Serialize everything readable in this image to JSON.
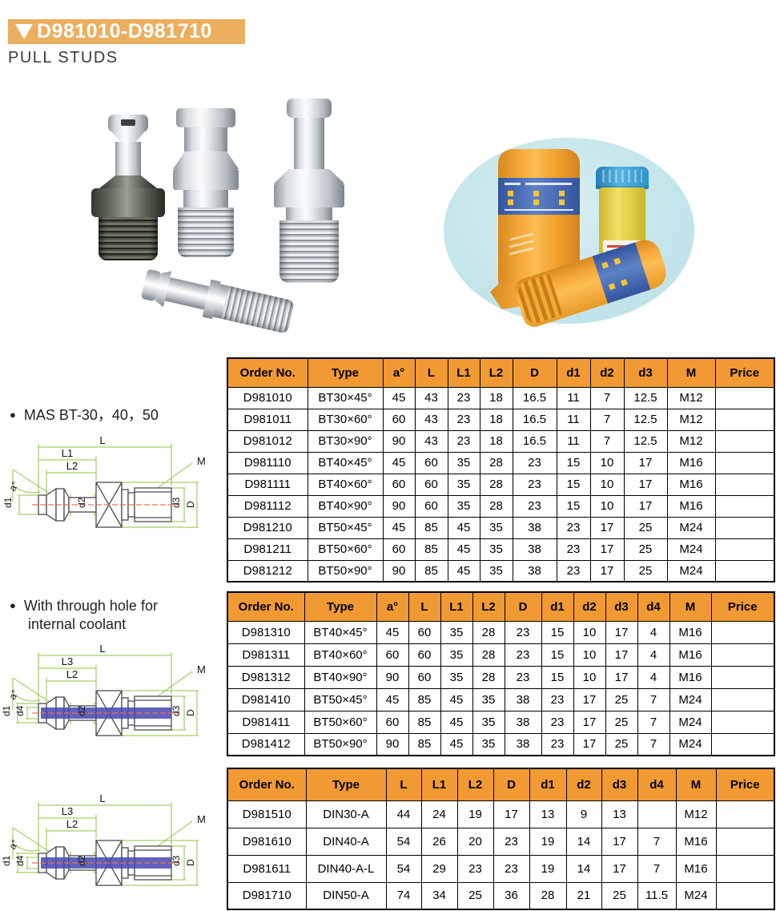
{
  "header": {
    "banner": "D981010-D981710",
    "title": "PULL STUDS"
  },
  "sections": {
    "mas": "MAS BT-30，40，50",
    "coolant_line1": "With through hole for",
    "coolant_line2": "internal coolant"
  },
  "diagrams": {
    "d1": {
      "L": "L",
      "L1": "L1",
      "L2": "L2",
      "M": "M",
      "a": "a°",
      "d1": "d1",
      "d2": "d2",
      "d3": "d3",
      "D": "D"
    },
    "d2": {
      "L": "L",
      "L3": "L3",
      "L2": "L2",
      "M": "M",
      "a": "a°",
      "d1": "d1",
      "d4": "d4",
      "d2": "d2",
      "d3": "d3",
      "D": "D"
    },
    "d3": {
      "L": "L",
      "L3": "L3",
      "L2": "L2",
      "M": "M",
      "a": "a°",
      "d1": "d1",
      "d4": "d4",
      "d2": "d2",
      "d3": "d3",
      "D": "D"
    }
  },
  "tables": [
    {
      "headers": [
        "Order No.",
        "Type",
        "a°",
        "L",
        "L1",
        "L2",
        "D",
        "d1",
        "d2",
        "d3",
        "M",
        "Price"
      ],
      "rows": [
        [
          "D981010",
          "BT30×45°",
          "45",
          "43",
          "23",
          "18",
          "16.5",
          "11",
          "7",
          "12.5",
          "M12",
          ""
        ],
        [
          "D981011",
          "BT30×60°",
          "60",
          "43",
          "23",
          "18",
          "16.5",
          "11",
          "7",
          "12.5",
          "M12",
          ""
        ],
        [
          "D981012",
          "BT30×90°",
          "90",
          "43",
          "23",
          "18",
          "16.5",
          "11",
          "7",
          "12.5",
          "M12",
          ""
        ],
        [
          "D981110",
          "BT40×45°",
          "45",
          "60",
          "35",
          "28",
          "23",
          "15",
          "10",
          "17",
          "M16",
          ""
        ],
        [
          "D981111",
          "BT40×60°",
          "60",
          "60",
          "35",
          "28",
          "23",
          "15",
          "10",
          "17",
          "M16",
          ""
        ],
        [
          "D981112",
          "BT40×90°",
          "90",
          "60",
          "35",
          "28",
          "23",
          "15",
          "10",
          "17",
          "M16",
          ""
        ],
        [
          "D981210",
          "BT50×45°",
          "45",
          "85",
          "45",
          "35",
          "38",
          "23",
          "17",
          "25",
          "M24",
          ""
        ],
        [
          "D981211",
          "BT50×60°",
          "60",
          "85",
          "45",
          "35",
          "38",
          "23",
          "17",
          "25",
          "M24",
          ""
        ],
        [
          "D981212",
          "BT50×90°",
          "90",
          "85",
          "45",
          "35",
          "38",
          "23",
          "17",
          "25",
          "M24",
          ""
        ]
      ]
    },
    {
      "headers": [
        "Order No.",
        "Type",
        "a°",
        "L",
        "L1",
        "L2",
        "D",
        "d1",
        "d2",
        "d3",
        "d4",
        "M",
        "Price"
      ],
      "rows": [
        [
          "D981310",
          "BT40×45°",
          "45",
          "60",
          "35",
          "28",
          "23",
          "15",
          "10",
          "17",
          "4",
          "M16",
          ""
        ],
        [
          "D981311",
          "BT40×60°",
          "60",
          "60",
          "35",
          "28",
          "23",
          "15",
          "10",
          "17",
          "4",
          "M16",
          ""
        ],
        [
          "D981312",
          "BT40×90°",
          "90",
          "60",
          "35",
          "28",
          "23",
          "15",
          "10",
          "17",
          "4",
          "M16",
          ""
        ],
        [
          "D981410",
          "BT50×45°",
          "45",
          "85",
          "45",
          "35",
          "38",
          "23",
          "17",
          "25",
          "7",
          "M24",
          ""
        ],
        [
          "D981411",
          "BT50×60°",
          "60",
          "85",
          "45",
          "35",
          "38",
          "23",
          "17",
          "25",
          "7",
          "M24",
          ""
        ],
        [
          "D981412",
          "BT50×90°",
          "90",
          "85",
          "45",
          "35",
          "38",
          "23",
          "17",
          "25",
          "7",
          "M24",
          ""
        ]
      ]
    },
    {
      "headers": [
        "Order No.",
        "Type",
        "L",
        "L1",
        "L2",
        "D",
        "d1",
        "d2",
        "d3",
        "d4",
        "M",
        "Price"
      ],
      "rows": [
        [
          "D981510",
          "DIN30-A",
          "44",
          "24",
          "19",
          "17",
          "13",
          "9",
          "13",
          "",
          "M12",
          ""
        ],
        [
          "D981610",
          "DIN40-A",
          "54",
          "26",
          "20",
          "23",
          "19",
          "14",
          "17",
          "7",
          "M16",
          ""
        ],
        [
          "D981611",
          "DIN40-A-L",
          "54",
          "29",
          "23",
          "23",
          "19",
          "14",
          "17",
          "7",
          "M16",
          ""
        ],
        [
          "D981710",
          "DIN50-A",
          "74",
          "34",
          "25",
          "36",
          "28",
          "21",
          "25",
          "11.5",
          "M24",
          ""
        ]
      ]
    }
  ],
  "colors": {
    "banner_bg": "#ECAE5F",
    "table_header_bg": "#F19A33",
    "dimension_green": "#8CC63F",
    "centerline_orange": "#E8744C",
    "coolant_blue": "#4547B0",
    "photo_ellipse_blue": "#C4E5EA",
    "container_orange": "#F5A833"
  }
}
